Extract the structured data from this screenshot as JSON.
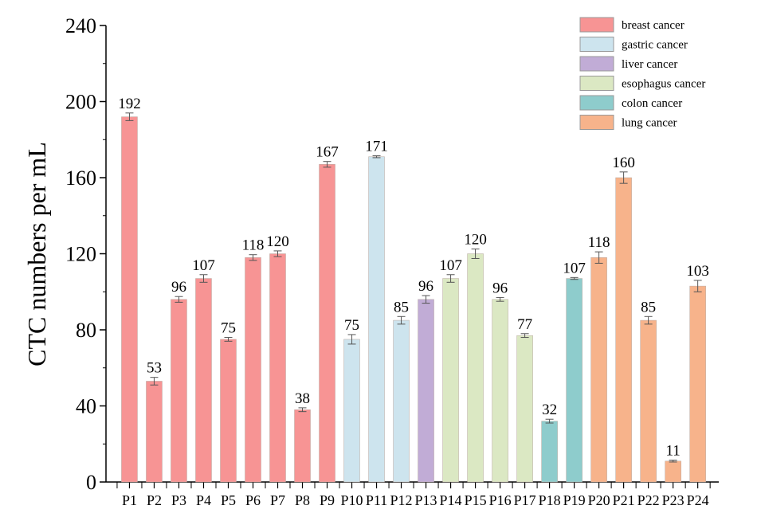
{
  "chart_data": {
    "type": "bar",
    "title": "",
    "xlabel": "",
    "ylabel": "CTC numbers per mL",
    "ylim": [
      0,
      240
    ],
    "yticks": [
      0,
      40,
      80,
      120,
      160,
      200,
      240
    ],
    "grid": false,
    "legend_position": "top-right",
    "categories": [
      "P1",
      "P2",
      "P3",
      "P4",
      "P5",
      "P6",
      "P7",
      "P8",
      "P9",
      "P10",
      "P11",
      "P12",
      "P13",
      "P14",
      "P15",
      "P16",
      "P17",
      "P18",
      "P19",
      "P20",
      "P21",
      "P22",
      "P23",
      "P24"
    ],
    "values": [
      192,
      53,
      96,
      107,
      75,
      118,
      120,
      38,
      167,
      75,
      171,
      85,
      96,
      107,
      120,
      96,
      77,
      32,
      107,
      118,
      160,
      85,
      11,
      103
    ],
    "errors": [
      2,
      2,
      1.5,
      2,
      1,
      1.5,
      1.5,
      1,
      1.5,
      2.5,
      0.5,
      2,
      2,
      2,
      2.5,
      1,
      1,
      1,
      0.5,
      3,
      3,
      2,
      0.5,
      3
    ],
    "groups": [
      "breast",
      "breast",
      "breast",
      "breast",
      "breast",
      "breast",
      "breast",
      "breast",
      "breast",
      "gastric",
      "gastric",
      "gastric",
      "liver",
      "esophagus",
      "esophagus",
      "esophagus",
      "esophagus",
      "colon",
      "colon",
      "lung",
      "lung",
      "lung",
      "lung",
      "lung"
    ],
    "legend": [
      {
        "key": "breast",
        "label": "breast cancer",
        "color": "#f79494"
      },
      {
        "key": "gastric",
        "label": "gastric cancer",
        "color": "#cde4ee"
      },
      {
        "key": "liver",
        "label": "liver cancer",
        "color": "#c1acd6"
      },
      {
        "key": "esophagus",
        "label": "esophagus cancer",
        "color": "#dbe8c3"
      },
      {
        "key": "colon",
        "label": "colon cancer",
        "color": "#8ecccc"
      },
      {
        "key": "lung",
        "label": "lung cancer",
        "color": "#f7b38b"
      }
    ]
  }
}
